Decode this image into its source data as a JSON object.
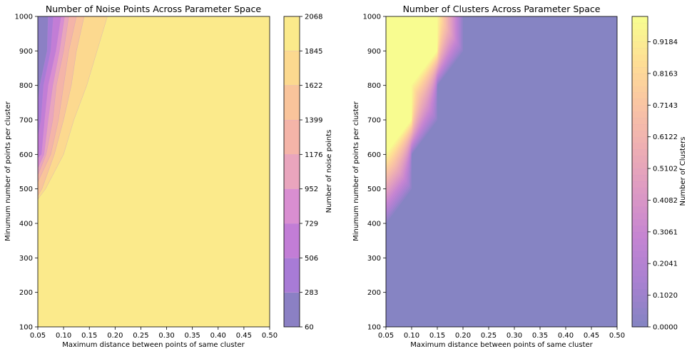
{
  "chart_data": [
    {
      "type": "contour",
      "title": "Number of Noise Points Across Parameter Space",
      "xlabel": "Maximum distance between points of same cluster",
      "ylabel": "Minumum number of points per cluster",
      "xlim": [
        0.05,
        0.5
      ],
      "ylim": [
        100,
        1000
      ],
      "x_ticks": [
        "0.05",
        "0.10",
        "0.15",
        "0.20",
        "0.25",
        "0.30",
        "0.35",
        "0.40",
        "0.45",
        "0.50"
      ],
      "y_ticks": [
        "100",
        "200",
        "300",
        "400",
        "500",
        "600",
        "700",
        "800",
        "900",
        "1000"
      ],
      "colorbar": {
        "label": "Number of noise points",
        "levels": [
          60,
          283,
          506,
          729,
          952,
          1176,
          1399,
          1622,
          1845,
          2068
        ],
        "tick_labels": [
          "60",
          "283",
          "506",
          "729",
          "952",
          "1176",
          "1399",
          "1622",
          "1845",
          "2068"
        ],
        "colors": [
          "#8b80c4",
          "#a87bd6",
          "#c27dd6",
          "#d98ed1",
          "#e9a5bd",
          "#f4b4a8",
          "#f9c49b",
          "#fcd98f",
          "#fbea8b"
        ],
        "cmap": "plasma",
        "alpha": 0.5
      },
      "level_boundaries": [
        {
          "level": 283,
          "x_at_y": [
            [
              1000,
              0.07
            ],
            [
              900,
              0.068
            ],
            [
              800,
              0.054
            ],
            [
              750,
              0.05
            ]
          ]
        },
        {
          "level": 506,
          "x_at_y": [
            [
              1000,
              0.08
            ],
            [
              900,
              0.075
            ],
            [
              800,
              0.061
            ],
            [
              700,
              0.056
            ],
            [
              650,
              0.05
            ]
          ]
        },
        {
          "level": 729,
          "x_at_y": [
            [
              1000,
              0.095
            ],
            [
              900,
              0.085
            ],
            [
              800,
              0.07
            ],
            [
              700,
              0.063
            ],
            [
              600,
              0.057
            ],
            [
              590,
              0.05
            ]
          ]
        },
        {
          "level": 952,
          "x_at_y": [
            [
              1000,
              0.102
            ],
            [
              900,
              0.092
            ],
            [
              800,
              0.079
            ],
            [
              700,
              0.07
            ],
            [
              600,
              0.062
            ],
            [
              560,
              0.05
            ]
          ]
        },
        {
          "level": 1176,
          "x_at_y": [
            [
              1000,
              0.11
            ],
            [
              900,
              0.1
            ],
            [
              800,
              0.086
            ],
            [
              700,
              0.079
            ],
            [
              600,
              0.066
            ],
            [
              540,
              0.05
            ]
          ]
        },
        {
          "level": 1399,
          "x_at_y": [
            [
              1000,
              0.125
            ],
            [
              900,
              0.11
            ],
            [
              800,
              0.1
            ],
            [
              700,
              0.09
            ],
            [
              600,
              0.075
            ],
            [
              520,
              0.05
            ]
          ]
        },
        {
          "level": 1622,
          "x_at_y": [
            [
              1000,
              0.14
            ],
            [
              900,
              0.125
            ],
            [
              800,
              0.115
            ],
            [
              700,
              0.1
            ],
            [
              600,
              0.082
            ],
            [
              500,
              0.058
            ],
            [
              480,
              0.05
            ]
          ]
        },
        {
          "level": 1845,
          "x_at_y": [
            [
              1000,
              0.185
            ],
            [
              900,
              0.165
            ],
            [
              800,
              0.145
            ],
            [
              700,
              0.12
            ],
            [
              600,
              0.1
            ],
            [
              500,
              0.065
            ],
            [
              470,
              0.05
            ]
          ]
        }
      ]
    },
    {
      "type": "contour",
      "title": "Number of Clusters Across Parameter Space",
      "xlabel": "Maximum distance between points of same cluster",
      "ylabel": "Minumum number of points per cluster",
      "xlim": [
        0.05,
        0.5
      ],
      "ylim": [
        100,
        1000
      ],
      "x_ticks": [
        "0.05",
        "0.10",
        "0.15",
        "0.20",
        "0.25",
        "0.30",
        "0.35",
        "0.40",
        "0.45",
        "0.50"
      ],
      "y_ticks": [
        "100",
        "200",
        "300",
        "400",
        "500",
        "600",
        "700",
        "800",
        "900",
        "1000"
      ],
      "colorbar": {
        "label": "Number of Clusters",
        "min": 0,
        "max": 1,
        "tick_values": [
          0.0,
          0.102,
          0.2041,
          0.3061,
          0.4082,
          0.5102,
          0.6122,
          0.7143,
          0.8163,
          0.9184
        ],
        "tick_labels": [
          "0.0000",
          "0.1020",
          "0.2041",
          "0.3061",
          "0.4082",
          "0.5102",
          "0.6122",
          "0.7143",
          "0.8163",
          "0.9184"
        ],
        "n_levels": 49,
        "cmap": "plasma",
        "alpha": 0.5
      },
      "region_one_cluster": [
        [
          0.05,
          1000
        ],
        [
          0.15,
          1000
        ],
        [
          0.15,
          900
        ],
        [
          0.1,
          800
        ],
        [
          0.1,
          700
        ],
        [
          0.05,
          600
        ]
      ],
      "region_zero_boundary": [
        [
          0.05,
          400
        ],
        [
          0.1,
          500
        ],
        [
          0.1,
          600
        ],
        [
          0.15,
          700
        ],
        [
          0.15,
          800
        ],
        [
          0.2,
          900
        ],
        [
          0.2,
          1000
        ]
      ]
    }
  ]
}
